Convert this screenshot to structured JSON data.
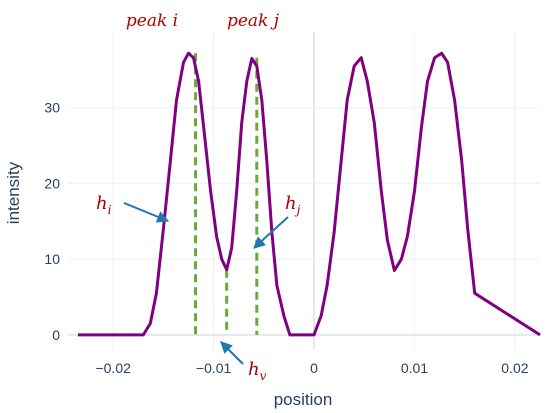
{
  "chart_data": {
    "type": "line",
    "xlabel": "position",
    "ylabel": "intensity",
    "xlim": [
      -0.0245,
      0.0225
    ],
    "ylim": [
      -2,
      40
    ],
    "grid": true,
    "xticks": [
      -0.02,
      -0.01,
      0,
      0.01,
      0.02
    ],
    "xtick_labels": [
      "−0.02",
      "−0.01",
      "0",
      "0.01",
      "0.02"
    ],
    "yticks": [
      0,
      10,
      20,
      30
    ],
    "ytick_labels": [
      "0",
      "10",
      "20",
      "30"
    ],
    "series": [
      {
        "color": "#800080",
        "x": [
          -0.0235,
          -0.017,
          -0.0163,
          -0.0157,
          -0.015,
          -0.0143,
          -0.0137,
          -0.013,
          -0.0125,
          -0.012,
          -0.0115,
          -0.011,
          -0.0103,
          -0.0097,
          -0.0092,
          -0.0087,
          -0.0082,
          -0.0077,
          -0.0072,
          -0.0067,
          -0.0062,
          -0.0057,
          -0.0052,
          -0.0047,
          -0.0042,
          -0.0037,
          -0.003,
          -0.0024,
          -0.0017,
          0.0,
          0.0007,
          0.0013,
          0.002,
          0.0027,
          0.0033,
          0.004,
          0.0047,
          0.0053,
          0.006,
          0.0067,
          0.0073,
          0.008,
          0.0087,
          0.0093,
          0.01,
          0.0107,
          0.0113,
          0.012,
          0.0127,
          0.0133,
          0.014,
          0.0147,
          0.0153,
          0.016,
          0.0225
        ],
        "y": [
          0,
          0,
          1.5,
          5.5,
          14,
          23,
          31,
          36,
          37.2,
          36.6,
          33.5,
          27.5,
          19,
          13,
          10,
          8.6,
          11.5,
          19,
          28,
          33.5,
          36.5,
          35.5,
          31,
          23,
          13.5,
          6.5,
          2.5,
          0,
          0,
          0,
          2.5,
          6.5,
          13.5,
          23,
          31,
          35.5,
          36.6,
          33.5,
          28,
          19,
          12.5,
          8.5,
          10,
          13,
          19,
          27.5,
          33.5,
          36.6,
          37.2,
          36,
          31,
          23,
          14,
          5.5,
          0
        ]
      }
    ],
    "markers": [
      {
        "x": -0.0118,
        "y": 37.2,
        "color": "#6aaa3a"
      },
      {
        "x": -0.0087,
        "y": 8.6,
        "color": "#6aaa3a"
      },
      {
        "x": -0.0057,
        "y": 36.6,
        "color": "#6aaa3a"
      }
    ],
    "annotations": [
      {
        "id": "peak-i",
        "text": "peak i"
      },
      {
        "id": "peak-j",
        "text": "peak j"
      },
      {
        "id": "h-i",
        "main": "h",
        "sub": "i"
      },
      {
        "id": "h-j",
        "main": "h",
        "sub": "j"
      },
      {
        "id": "h-v",
        "main": "h",
        "sub": "v"
      }
    ],
    "annotation_color": "#b00000",
    "arrow_color": "#1f77b4"
  }
}
